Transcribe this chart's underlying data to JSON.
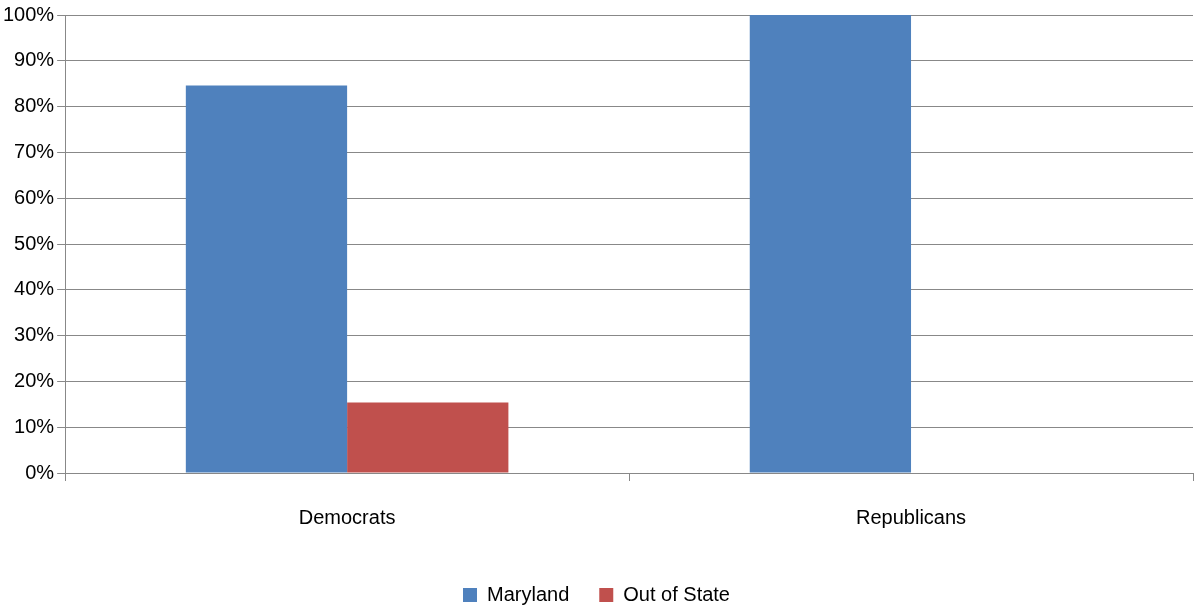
{
  "chart_data": {
    "type": "bar",
    "categories": [
      "Democrats",
      "Republicans"
    ],
    "series": [
      {
        "name": "Maryland",
        "color": "#4f81bd",
        "values": [
          84.6,
          100
        ]
      },
      {
        "name": "Out of State",
        "color": "#c0504d",
        "values": [
          15.4,
          0
        ]
      }
    ],
    "ylim": [
      0,
      100
    ],
    "yticks": [
      {
        "value": 0,
        "label": "0%"
      },
      {
        "value": 10,
        "label": "10%"
      },
      {
        "value": 20,
        "label": "20%"
      },
      {
        "value": 30,
        "label": "30%"
      },
      {
        "value": 40,
        "label": "40%"
      },
      {
        "value": 50,
        "label": "50%"
      },
      {
        "value": 60,
        "label": "60%"
      },
      {
        "value": 70,
        "label": "70%"
      },
      {
        "value": 80,
        "label": "80%"
      },
      {
        "value": 90,
        "label": "90%"
      },
      {
        "value": 100,
        "label": "100%"
      }
    ],
    "grid": "y",
    "legend": "bottom"
  }
}
